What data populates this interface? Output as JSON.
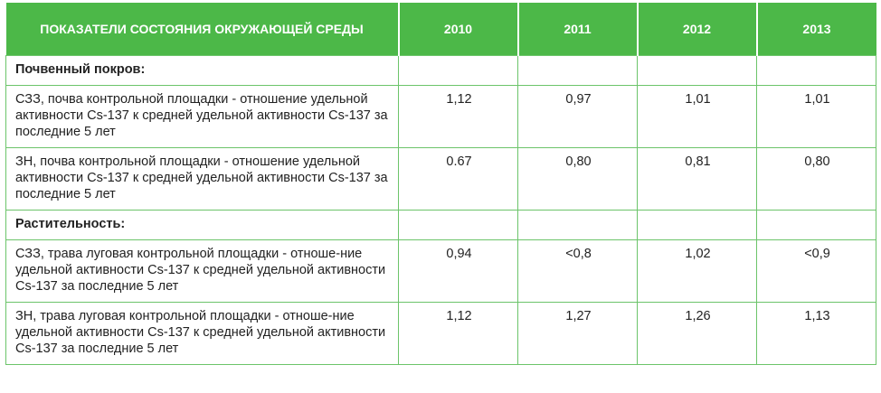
{
  "table": {
    "headers": {
      "indicator": "ПОКАЗАТЕЛИ СОСТОЯНИЯ ОКРУЖАЮЩЕЙ СРЕДЫ",
      "years": [
        "2010",
        "2011",
        "2012",
        "2013"
      ]
    },
    "sections": [
      {
        "title": "Почвенный покров:",
        "rows": [
          {
            "label": "СЗЗ, почва контрольной площадки - отношение удельной активности Cs-137 к средней удельной активности Cs-137 за последние 5 лет",
            "values": [
              "1,12",
              "0,97",
              "1,01",
              "1,01"
            ]
          },
          {
            "label": "ЗН, почва контрольной площадки - отношение удельной активности Cs-137 к средней удельной активности Cs-137 за последние 5 лет",
            "values": [
              "0.67",
              "0,80",
              "0,81",
              "0,80"
            ]
          }
        ]
      },
      {
        "title": "Растительность:",
        "rows": [
          {
            "label": "СЗЗ, трава луговая контрольной площадки - отноше-ние удельной активности Cs-137 к средней удельной активности Cs-137 за последние 5 лет",
            "values": [
              "0,94",
              "<0,8",
              "1,02",
              "<0,9"
            ]
          },
          {
            "label": "ЗН, трава луговая контрольной площадки - отноше-ние удельной активности Cs-137 к средней удельной активности Cs-137 за последние 5 лет",
            "values": [
              "1,12",
              "1,27",
              "1,26",
              "1,13"
            ]
          }
        ]
      }
    ]
  }
}
